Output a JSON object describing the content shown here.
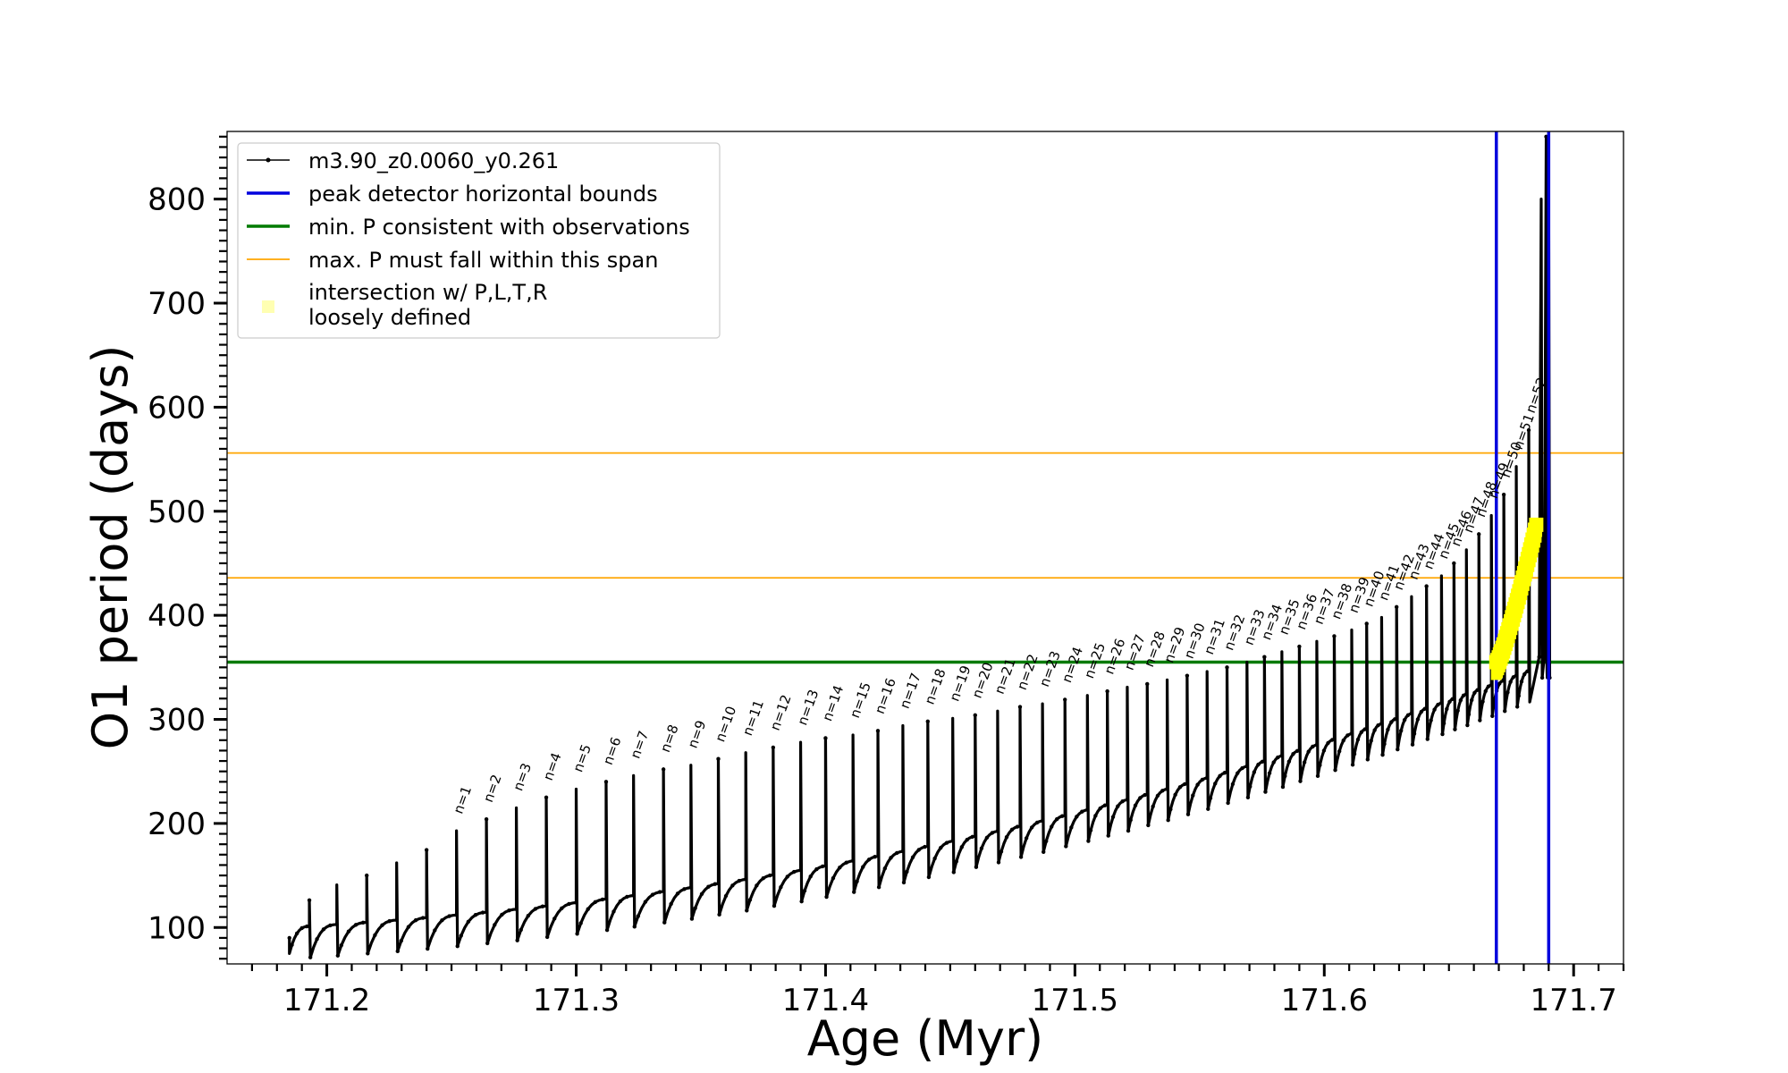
{
  "chart_data": {
    "type": "line",
    "xlabel": "Age (Myr)",
    "ylabel": "O1 period (days)",
    "xlim": [
      171.16,
      171.72
    ],
    "ylim": [
      65,
      865
    ],
    "x_ticks": [
      171.2,
      171.3,
      171.4,
      171.5,
      171.6,
      171.7
    ],
    "y_ticks": [
      100,
      200,
      300,
      400,
      500,
      600,
      700,
      800
    ],
    "grid": false,
    "legend_position": "top-left",
    "series": [
      {
        "name": "m3.90_z0.0060_y0.261",
        "color": "#000000",
        "style": "line-with-dots",
        "age_start": 171.185,
        "age_end": 171.691,
        "period_start": 75,
        "baseline_at_last_peak": 356,
        "pulse_count": 53
      },
      {
        "name": "peak detector horizontal bounds",
        "color": "#0000dd",
        "style": "vertical-lines",
        "x": [
          171.669,
          171.69
        ]
      },
      {
        "name": "min. P consistent with observations",
        "color": "#007a00",
        "style": "horizontal-line",
        "y": 355
      },
      {
        "name": "max. P must fall within this span",
        "color": "#ffa500",
        "style": "horizontal-lines",
        "y": [
          436,
          556
        ]
      },
      {
        "name": "intersection w/ P,L,T,R\nloosely defined",
        "color": "#ffff00",
        "style": "markers",
        "x_range": [
          171.669,
          171.685
        ],
        "y_range": [
          355,
          487
        ]
      }
    ],
    "peak_labels": [
      {
        "label": "n=1",
        "x": 171.252,
        "y": 205
      },
      {
        "label": "n=2",
        "x": 171.264,
        "y": 216
      },
      {
        "label": "n=3",
        "x": 171.276,
        "y": 227
      },
      {
        "label": "n=4",
        "x": 171.288,
        "y": 237
      },
      {
        "label": "n=5",
        "x": 171.3,
        "y": 245
      },
      {
        "label": "n=6",
        "x": 171.312,
        "y": 252
      },
      {
        "label": "n=7",
        "x": 171.323,
        "y": 258
      },
      {
        "label": "n=8",
        "x": 171.335,
        "y": 264
      },
      {
        "label": "n=9",
        "x": 171.346,
        "y": 268
      },
      {
        "label": "n=10",
        "x": 171.357,
        "y": 274
      },
      {
        "label": "n=11",
        "x": 171.368,
        "y": 280
      },
      {
        "label": "n=12",
        "x": 171.379,
        "y": 285
      },
      {
        "label": "n=13",
        "x": 171.39,
        "y": 290
      },
      {
        "label": "n=14",
        "x": 171.4,
        "y": 294
      },
      {
        "label": "n=15",
        "x": 171.411,
        "y": 297
      },
      {
        "label": "n=16",
        "x": 171.421,
        "y": 301
      },
      {
        "label": "n=17",
        "x": 171.431,
        "y": 306
      },
      {
        "label": "n=18",
        "x": 171.441,
        "y": 310
      },
      {
        "label": "n=19",
        "x": 171.451,
        "y": 313
      },
      {
        "label": "n=20",
        "x": 171.46,
        "y": 316
      },
      {
        "label": "n=21",
        "x": 171.469,
        "y": 320
      },
      {
        "label": "n=22",
        "x": 171.478,
        "y": 324
      },
      {
        "label": "n=23",
        "x": 171.487,
        "y": 327
      },
      {
        "label": "n=24",
        "x": 171.496,
        "y": 331
      },
      {
        "label": "n=25",
        "x": 171.505,
        "y": 335
      },
      {
        "label": "n=26",
        "x": 171.513,
        "y": 339
      },
      {
        "label": "n=27",
        "x": 171.521,
        "y": 343
      },
      {
        "label": "n=28",
        "x": 171.529,
        "y": 346
      },
      {
        "label": "n=29",
        "x": 171.537,
        "y": 350
      },
      {
        "label": "n=30",
        "x": 171.545,
        "y": 354
      },
      {
        "label": "n=31",
        "x": 171.553,
        "y": 358
      },
      {
        "label": "n=32",
        "x": 171.561,
        "y": 362
      },
      {
        "label": "n=33",
        "x": 171.569,
        "y": 367
      },
      {
        "label": "n=34",
        "x": 171.576,
        "y": 372
      },
      {
        "label": "n=35",
        "x": 171.583,
        "y": 377
      },
      {
        "label": "n=36",
        "x": 171.59,
        "y": 382
      },
      {
        "label": "n=37",
        "x": 171.597,
        "y": 387
      },
      {
        "label": "n=38",
        "x": 171.604,
        "y": 392
      },
      {
        "label": "n=39",
        "x": 171.611,
        "y": 398
      },
      {
        "label": "n=40",
        "x": 171.617,
        "y": 404
      },
      {
        "label": "n=41",
        "x": 171.623,
        "y": 410
      },
      {
        "label": "n=42",
        "x": 171.629,
        "y": 420
      },
      {
        "label": "n=43",
        "x": 171.635,
        "y": 430
      },
      {
        "label": "n=44",
        "x": 171.641,
        "y": 440
      },
      {
        "label": "n=45",
        "x": 171.647,
        "y": 450
      },
      {
        "label": "n=46",
        "x": 171.652,
        "y": 462
      },
      {
        "label": "n=47",
        "x": 171.657,
        "y": 475
      },
      {
        "label": "n=48",
        "x": 171.662,
        "y": 490
      },
      {
        "label": "n=49",
        "x": 171.667,
        "y": 508
      },
      {
        "label": "n=50",
        "x": 171.672,
        "y": 528
      },
      {
        "label": "n=51",
        "x": 171.677,
        "y": 555
      },
      {
        "label": "n=52",
        "x": 171.682,
        "y": 590
      }
    ]
  }
}
